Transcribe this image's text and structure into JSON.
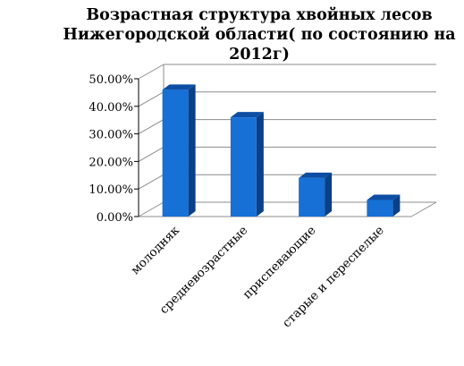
{
  "chart_data": {
    "type": "bar",
    "title_lines": [
      "Возрастная структура хвойных лесов",
      "Нижегородской области( по состоянию на",
      "2012г)"
    ],
    "categories": [
      "молодняк",
      "средневозрастные",
      "приспевающие",
      "старые и переспелые"
    ],
    "values": [
      0.46,
      0.36,
      0.14,
      0.06
    ],
    "y_ticks": [
      "0.00%",
      "10.00%",
      "20.00%",
      "30.00%",
      "40.00%",
      "50.00%"
    ],
    "ylim": [
      0,
      0.5
    ],
    "grid": true,
    "legend": "none",
    "colors": {
      "bar_front": "#1670d6",
      "bar_side": "#0b3f86",
      "bar_top": "#0d4ea4",
      "grid": "#8c8c8c"
    }
  }
}
